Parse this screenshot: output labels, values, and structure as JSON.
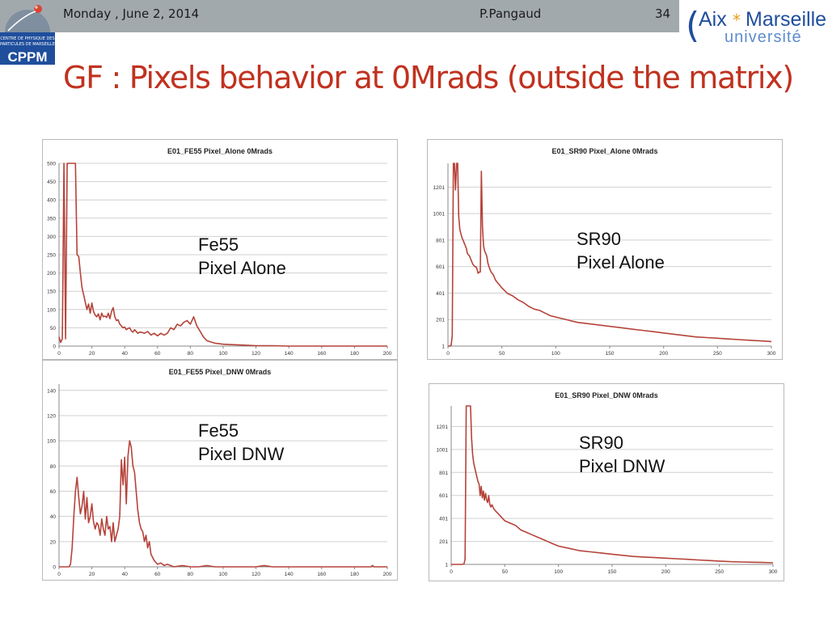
{
  "header": {
    "date": "Monday , June 2, 2014",
    "author": "P.Pangaud",
    "page_number": "34"
  },
  "logos": {
    "cppm": {
      "line1": "CENTRE DE PHYSIQUE DES",
      "line2": "PARTICULES DE MARSEILLE",
      "name": "CPPM"
    },
    "amu": {
      "word1": "Aix",
      "word2": "Marseille",
      "word3": "université"
    }
  },
  "title": "GF : Pixels behavior at 0Mrads (outside the matrix)",
  "colors": {
    "series": "#b5433a",
    "title": "#c0321f",
    "topbar": "#a2a9ad",
    "cppm_blue": "#1f4e9c"
  },
  "annotations": [
    {
      "line1": "Fe55",
      "line2": "Pixel Alone"
    },
    {
      "line1": "SR90",
      "line2": "Pixel Alone"
    },
    {
      "line1": "Fe55",
      "line2": "Pixel DNW"
    },
    {
      "line1": "SR90",
      "line2": "Pixel DNW"
    }
  ],
  "chart_data": [
    {
      "type": "line",
      "title": "E01_FE55 Pixel_Alone 0Mrads",
      "xlim": [
        0,
        200
      ],
      "ylim": [
        0,
        500
      ],
      "xticks": [
        0,
        20,
        40,
        60,
        80,
        100,
        120,
        140,
        160,
        180,
        200
      ],
      "yticks": [
        0,
        50,
        100,
        150,
        200,
        250,
        300,
        350,
        400,
        450,
        500
      ],
      "grid": "horizontal",
      "series": [
        {
          "x": [
            0,
            1,
            2,
            3,
            4,
            5,
            6,
            7,
            8,
            9,
            10,
            11,
            12,
            13,
            14,
            15,
            16,
            17,
            18,
            19,
            20,
            21,
            22,
            23,
            24,
            25,
            26,
            27,
            28,
            29,
            30,
            31,
            32,
            33,
            34,
            35,
            36,
            37,
            38,
            39,
            40,
            41,
            42,
            43,
            44,
            45,
            46,
            47,
            48,
            49,
            50,
            52,
            54,
            56,
            58,
            60,
            62,
            64,
            66,
            68,
            70,
            72,
            74,
            76,
            78,
            80,
            82,
            84,
            86,
            88,
            90,
            92,
            95,
            100,
            105,
            110,
            115,
            120,
            130,
            140,
            150,
            160,
            170,
            180,
            190,
            200
          ],
          "y": [
            25,
            10,
            20,
            500,
            20,
            500,
            500,
            500,
            500,
            500,
            500,
            250,
            245,
            200,
            160,
            140,
            120,
            100,
            115,
            90,
            118,
            95,
            85,
            80,
            88,
            72,
            90,
            80,
            82,
            78,
            90,
            75,
            95,
            105,
            80,
            70,
            72,
            60,
            55,
            50,
            52,
            45,
            48,
            50,
            42,
            38,
            45,
            40,
            35,
            38,
            38,
            35,
            40,
            30,
            35,
            28,
            35,
            30,
            35,
            50,
            45,
            60,
            55,
            65,
            70,
            60,
            80,
            55,
            40,
            25,
            15,
            12,
            8,
            5,
            4,
            3,
            2,
            1,
            1,
            0,
            0,
            0,
            0,
            0,
            0,
            0
          ]
        }
      ]
    },
    {
      "type": "line",
      "title": "E01_SR90 Pixel_Alone 0Mrads",
      "xlim": [
        0,
        300
      ],
      "ylim": [
        1,
        1380
      ],
      "xticks": [
        0,
        50,
        100,
        150,
        200,
        250,
        300
      ],
      "yticks": [
        1,
        201,
        401,
        601,
        801,
        1001,
        1201
      ],
      "grid": "horizontal",
      "series": [
        {
          "x": [
            0,
            1,
            2,
            3,
            4,
            5,
            6,
            7,
            8,
            9,
            10,
            11,
            12,
            13,
            14,
            15,
            16,
            17,
            18,
            19,
            20,
            21,
            22,
            23,
            24,
            25,
            26,
            27,
            28,
            29,
            30,
            31,
            32,
            33,
            34,
            35,
            36,
            37,
            38,
            39,
            40,
            42,
            44,
            46,
            48,
            50,
            55,
            60,
            65,
            70,
            75,
            80,
            85,
            90,
            95,
            100,
            110,
            120,
            130,
            140,
            150,
            160,
            170,
            180,
            190,
            200,
            210,
            220,
            230,
            240,
            250,
            260,
            270,
            280,
            290,
            300
          ],
          "y": [
            1,
            1,
            1,
            10,
            80,
            1380,
            1380,
            1180,
            1380,
            1380,
            980,
            880,
            850,
            820,
            800,
            780,
            760,
            740,
            700,
            690,
            680,
            660,
            640,
            620,
            610,
            600,
            600,
            580,
            550,
            560,
            560,
            1320,
            900,
            760,
            720,
            700,
            680,
            630,
            600,
            580,
            560,
            540,
            500,
            480,
            460,
            440,
            400,
            380,
            350,
            330,
            300,
            280,
            270,
            250,
            230,
            220,
            200,
            180,
            170,
            160,
            150,
            140,
            130,
            120,
            110,
            100,
            90,
            80,
            70,
            65,
            60,
            55,
            50,
            45,
            40,
            35
          ]
        }
      ]
    },
    {
      "type": "line",
      "title": "E01_FE55 Pixel_DNW 0Mrads",
      "xlim": [
        0,
        200
      ],
      "ylim": [
        0,
        145
      ],
      "xticks": [
        0,
        20,
        40,
        60,
        80,
        100,
        120,
        140,
        160,
        180,
        200
      ],
      "yticks": [
        0,
        20,
        40,
        60,
        80,
        100,
        120,
        140
      ],
      "grid": "horizontal",
      "series": [
        {
          "x": [
            0,
            5,
            6,
            7,
            8,
            9,
            10,
            11,
            12,
            13,
            14,
            15,
            16,
            17,
            18,
            19,
            20,
            21,
            22,
            23,
            24,
            25,
            26,
            27,
            28,
            29,
            30,
            31,
            32,
            33,
            34,
            35,
            36,
            37,
            38,
            39,
            40,
            41,
            42,
            43,
            44,
            45,
            46,
            47,
            48,
            49,
            50,
            51,
            52,
            53,
            54,
            55,
            56,
            58,
            60,
            62,
            64,
            66,
            70,
            75,
            80,
            85,
            90,
            95,
            100,
            110,
            120,
            125,
            130,
            140,
            150,
            160,
            170,
            180,
            190,
            191,
            192,
            200
          ],
          "y": [
            0,
            0,
            0,
            2,
            15,
            40,
            60,
            71,
            55,
            42,
            48,
            60,
            38,
            55,
            35,
            40,
            50,
            36,
            30,
            35,
            33,
            25,
            38,
            30,
            25,
            40,
            30,
            32,
            20,
            35,
            20,
            25,
            30,
            40,
            85,
            65,
            87,
            50,
            88,
            100,
            95,
            80,
            75,
            60,
            45,
            35,
            30,
            28,
            20,
            25,
            15,
            20,
            10,
            5,
            2,
            3,
            1,
            2,
            0,
            1,
            0,
            0,
            1,
            0,
            0,
            0,
            0,
            1,
            0,
            0,
            0,
            0,
            0,
            0,
            0,
            1,
            0,
            0
          ]
        }
      ]
    },
    {
      "type": "line",
      "title": "E01_SR90 Pixel_DNW 0Mrads",
      "xlim": [
        0,
        300
      ],
      "ylim": [
        1,
        1380
      ],
      "xticks": [
        0,
        50,
        100,
        150,
        200,
        250,
        300
      ],
      "yticks": [
        1,
        201,
        401,
        601,
        801,
        1001,
        1201
      ],
      "grid": "horizontal",
      "series": [
        {
          "x": [
            0,
            5,
            10,
            12,
            13,
            14,
            15,
            16,
            17,
            18,
            19,
            20,
            21,
            22,
            23,
            24,
            25,
            26,
            27,
            28,
            29,
            30,
            31,
            32,
            33,
            34,
            35,
            36,
            37,
            38,
            39,
            40,
            42,
            44,
            46,
            48,
            50,
            55,
            60,
            65,
            70,
            75,
            80,
            85,
            90,
            95,
            100,
            110,
            120,
            130,
            140,
            150,
            160,
            170,
            180,
            190,
            200,
            210,
            220,
            230,
            240,
            250,
            260,
            270,
            280,
            290,
            300
          ],
          "y": [
            1,
            1,
            1,
            5,
            50,
            1380,
            1380,
            1380,
            1380,
            1380,
            1100,
            960,
            880,
            840,
            800,
            760,
            720,
            700,
            600,
            680,
            580,
            640,
            560,
            620,
            560,
            540,
            600,
            520,
            500,
            520,
            500,
            480,
            460,
            440,
            420,
            400,
            380,
            360,
            340,
            300,
            280,
            260,
            240,
            220,
            200,
            180,
            160,
            140,
            120,
            110,
            100,
            90,
            80,
            70,
            65,
            60,
            55,
            50,
            45,
            40,
            35,
            30,
            25,
            22,
            20,
            18,
            15
          ]
        }
      ]
    }
  ]
}
